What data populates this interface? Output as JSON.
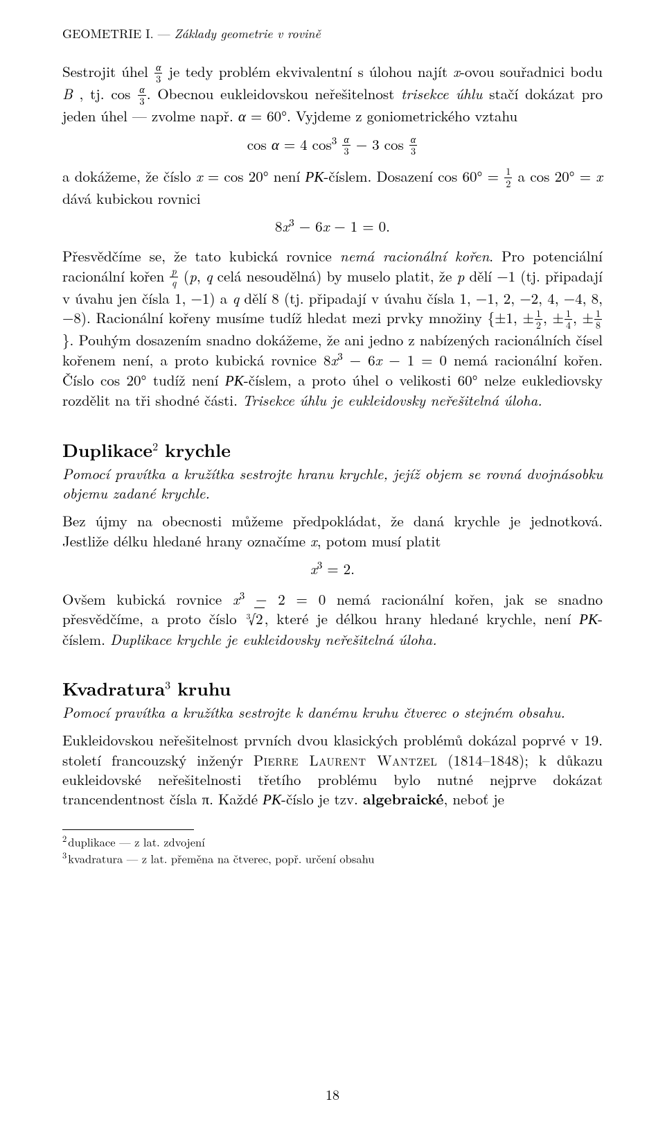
{
  "runningHead": {
    "lead": "GEOMETRIE I. — ",
    "rest": "Základy geometrie v rovině"
  },
  "para1a": "Sestrojit úhel ",
  "para1b": " je tedy problém ekvivalentní s úlohou najít ",
  "para1c": "-ovou souřadnici bodu ",
  "para1d": " , tj. cos ",
  "para1e": ". Obecnou eukleidovskou neřešitelnost ",
  "para1trisekce": "trisekce úhlu",
  "para1f": " stačí dokázat pro jeden úhel — zvolme např. ",
  "para1g": ". Vyjdeme z goniometrického vztahu",
  "disp1": "cos α = 4 cos³ (α/3) − 3 cos (α/3)",
  "para2a": "a dokážeme, že číslo ",
  "para2b": " není ",
  "para2c": "-číslem. Dosazení cos 60° = ",
  "para2d": " a cos 20° = ",
  "para2e": " dává kubickou rovnici",
  "disp2": "8x³ − 6x − 1 = 0.",
  "para3a": "Přesvědčíme se, že tato kubická rovnice ",
  "para3nema": "nemá racionální kořen",
  "para3b": ". Pro potenciální racionální kořen ",
  "para3c": " (",
  "para3d": " celá nesoudělná) by muselo platit, že ",
  "para3e": " dělí −1 (tj. připadají v úvahu jen čísla 1, −1) a ",
  "para3f": " dělí 8 (tj. připadají v úvahu čísla 1, −1, 2, −2, 4, −4, 8, −8). Racionální kořeny musíme tudíž hledat mezi prvky množiny {±1, ±",
  "para3g": ", ±",
  "para3h": ", ±",
  "para3i": "}. Pouhým dosazením snadno dokážeme, že ani jedno z nabízených racionálních čísel kořenem není, a proto kubická rovnice 8",
  "para3j": " − 6",
  "para3k": " − 1 = 0 nemá racionální kořen. Číslo cos 20° tudíž není ",
  "para3l": "-číslem, a proto úhel o velikosti 60° nelze euklediovsky rozdělit na tři shodné části. ",
  "para3conc": "Trisekce úhlu je eukleidovsky neřešitelná úloha.",
  "sec2title": "Duplikace",
  "sec2fn": "2",
  "sec2titleB": " krychle",
  "sec2problem": "Pomocí pravítka a kružítka sestrojte hranu krychle, jejíž objem se rovná dvojnásobku objemu zadané krychle.",
  "para4": "Bez újmy na obecnosti můžeme předpokládat, že daná krychle je jednotková. Jestliže délku hledané hrany označíme ",
  "para4b": ", potom musí platit",
  "disp3": "x³ = 2.",
  "para5a": "Ovšem kubická rovnice ",
  "para5b": " − 2 = 0 nemá racionální kořen, jak se snadno přesvědčíme, a proto číslo ",
  "para5c": ", které je délkou hrany hledané krychle, není ",
  "para5d": "-číslem. ",
  "para5conc": "Duplikace krychle je eukleidovsky neřešitelná úloha.",
  "sec3title": "Kvadratura",
  "sec3fn": "3",
  "sec3titleB": " kruhu",
  "sec3problem": "Pomocí pravítka a kružítka sestrojte k danému kruhu čtverec o stejném obsahu.",
  "para6a": "Eukleidovskou neřešitelnost prvních dvou klasických problémů dokázal poprvé v 19. století francouzský inženýr ",
  "para6name": "Pierre Laurent Wantzel",
  "para6b": " (1814–1848); k důkazu eukleidovské neřešitelnosti třetího problému bylo nutné nejprve dokázat trancendentnost čísla π. Každé ",
  "para6c": "-číslo je tzv. ",
  "para6alg": "algebraické",
  "para6d": ", neboť je",
  "fn2": "duplikace — z lat. zdvojení",
  "fn3": "kvadratura — z lat. přeměna na čtverec, popř. určení obsahu",
  "pageNum": "18",
  "PK": "PK"
}
